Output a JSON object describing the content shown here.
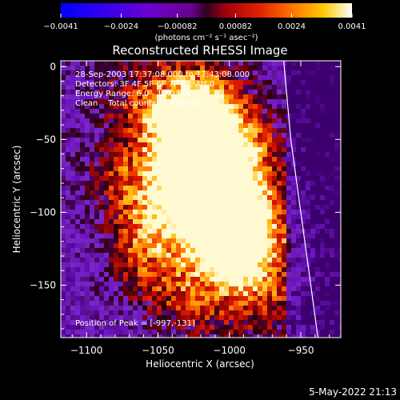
{
  "chart_data": {
    "type": "heatmap",
    "title": "Reconstructed RHESSI Image",
    "xlabel": "Heliocentric X (arcsec)",
    "ylabel": "Heliocentric Y (arcsec)",
    "xlim": [
      -1118,
      -922
    ],
    "ylim": [
      -186,
      4
    ],
    "x_ticks": [
      {
        "value": -1100,
        "label": "−1100"
      },
      {
        "value": -1050,
        "label": "−1050"
      },
      {
        "value": -1000,
        "label": "−1000"
      },
      {
        "value": -950,
        "label": "−950"
      }
    ],
    "y_ticks": [
      {
        "value": 0,
        "label": "0"
      },
      {
        "value": -50,
        "label": "−50"
      },
      {
        "value": -100,
        "label": "−100"
      },
      {
        "value": -150,
        "label": "−150"
      }
    ],
    "colorbar": {
      "min": -0.0041,
      "max": 0.0041,
      "ticks": [
        {
          "value": -0.0041,
          "label": "−0.0041"
        },
        {
          "value": -0.0024,
          "label": "−0.0024"
        },
        {
          "value": -0.00082,
          "label": "−0.00082"
        },
        {
          "value": 0.00082,
          "label": "0.00082"
        },
        {
          "value": 0.0024,
          "label": "0.0024"
        },
        {
          "value": 0.0041,
          "label": "0.0041"
        }
      ],
      "unit_label": "(photons cm⁻² s⁻¹ asec⁻²)"
    },
    "annotations": [
      "28-Sep-2003 17:37:08.000 to 17:43:08.000",
      "Detectors: 3F 4F 5F 6F 7F 8F, Att 0",
      "Energy Range: 6.0 - 12.0 keV",
      "Clean    Total counts: 2.91E+04"
    ],
    "peak_text": "Position of Peak = [-997,-131]",
    "peak": [
      -997,
      -131
    ],
    "limb_curve": [
      [
        -962,
        4
      ],
      [
        -957,
        -50
      ],
      [
        -950,
        -100
      ],
      [
        -943,
        -150
      ],
      [
        -938,
        -186
      ]
    ],
    "colors": {
      "background": "#000000",
      "foreground": "#ffffff",
      "limb": "#ffffff"
    }
  },
  "footer": {
    "date": "5-May-2022 21:13"
  }
}
